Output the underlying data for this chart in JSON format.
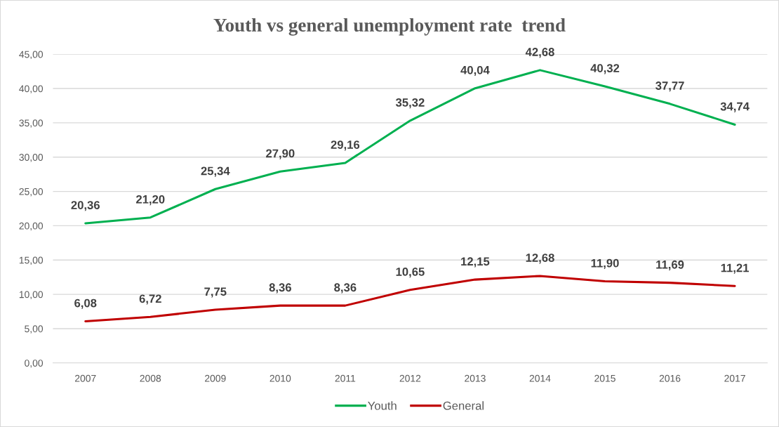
{
  "chart_data": {
    "type": "line",
    "title": "Youth vs general unemployment rate  trend",
    "categories": [
      "2007",
      "2008",
      "2009",
      "2010",
      "2011",
      "2012",
      "2013",
      "2014",
      "2015",
      "2016",
      "2017"
    ],
    "series": [
      {
        "name": "Youth",
        "color": "#00b050",
        "values": [
          20.36,
          21.2,
          25.34,
          27.9,
          29.16,
          35.32,
          40.04,
          42.68,
          40.32,
          37.77,
          34.74
        ],
        "value_labels": [
          "20,36",
          "21,20",
          "25,34",
          "27,90",
          "29,16",
          "35,32",
          "40,04",
          "42,68",
          "40,32",
          "37,77",
          "34,74"
        ]
      },
      {
        "name": "General",
        "color": "#c00000",
        "values": [
          6.08,
          6.72,
          7.75,
          8.36,
          8.36,
          10.65,
          12.15,
          12.68,
          11.9,
          11.69,
          11.21
        ],
        "value_labels": [
          "6,08",
          "6,72",
          "7,75",
          "8,36",
          "8,36",
          "10,65",
          "12,15",
          "12,68",
          "11,90",
          "11,69",
          "11,21"
        ]
      }
    ],
    "ylim": [
      0,
      45
    ],
    "yticks": [
      {
        "value": 0,
        "label": "0,00"
      },
      {
        "value": 5,
        "label": "5,00"
      },
      {
        "value": 10,
        "label": "10,00"
      },
      {
        "value": 15,
        "label": "15,00"
      },
      {
        "value": 20,
        "label": "20,00"
      },
      {
        "value": 25,
        "label": "25,00"
      },
      {
        "value": 30,
        "label": "30,00"
      },
      {
        "value": 35,
        "label": "35,00"
      },
      {
        "value": 40,
        "label": "40,00"
      },
      {
        "value": 45,
        "label": "45,00"
      }
    ],
    "grid": "y",
    "legend": "bottom",
    "marker": "none",
    "line_style": "solid"
  }
}
